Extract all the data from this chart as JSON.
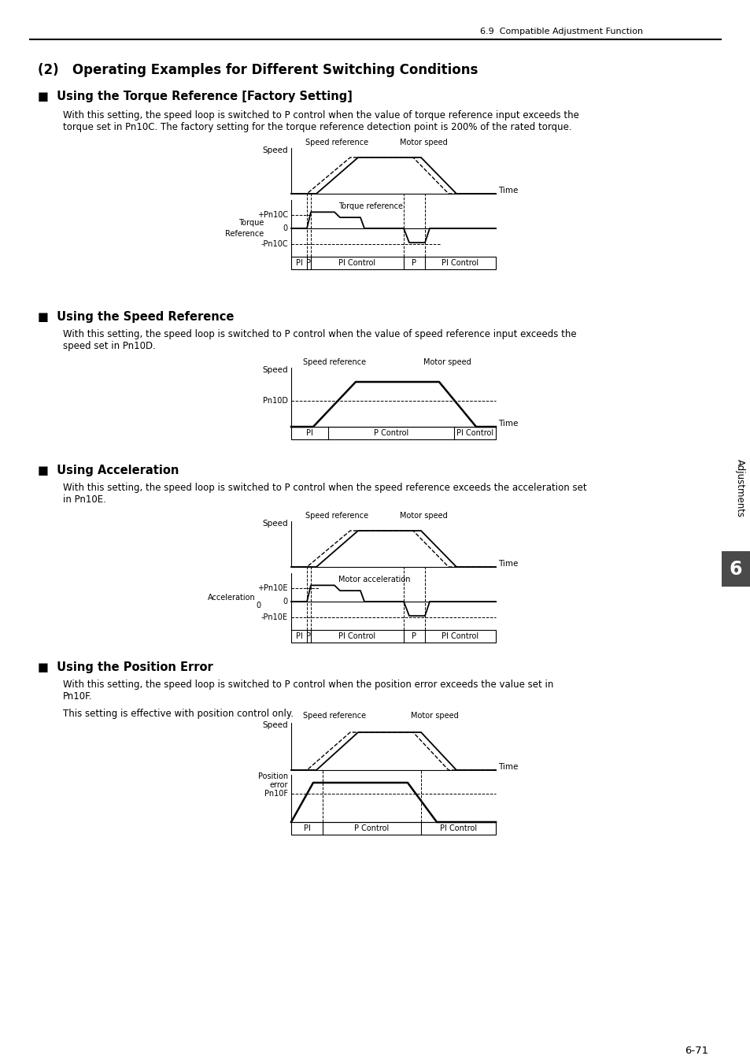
{
  "page_header": "6.9  Compatible Adjustment Function",
  "title": "(2)   Operating Examples for Different Switching Conditions",
  "section1_title": "■  Using the Torque Reference [Factory Setting]",
  "section1_body": "With this setting, the speed loop is switched to P control when the value of torque reference input exceeds the\ntorque set in Pn10C. The factory setting for the torque reference detection point is 200% of the rated torque.",
  "section2_title": "■  Using the Speed Reference",
  "section2_body": "With this setting, the speed loop is switched to P control when the value of speed reference input exceeds the\nspeed set in Pn10D.",
  "section3_title": "■  Using Acceleration",
  "section3_body": "With this setting, the speed loop is switched to P control when the speed reference exceeds the acceleration set\nin Pn10E.",
  "section4_title": "■  Using the Position Error",
  "section4_body": "With this setting, the speed loop is switched to P control when the position error exceeds the value set in\nPn10F.",
  "section4_extra": "This setting is effective with position control only.",
  "sidebar_text": "Adjustments",
  "sidebar_number": "6",
  "page_number": "6-71",
  "bg_color": "#ffffff"
}
